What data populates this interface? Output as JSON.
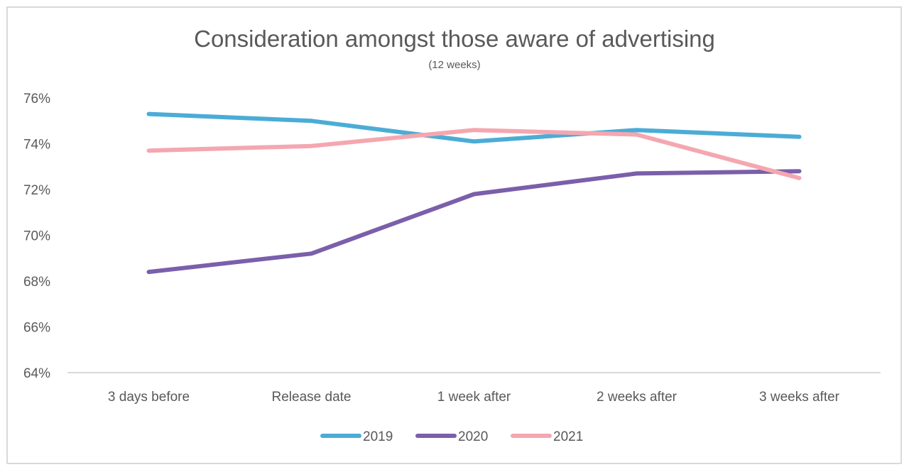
{
  "chart_data": {
    "type": "line",
    "title": "Consideration amongst those aware of advertising",
    "subtitle": "(12 weeks)",
    "xlabel": "",
    "ylabel": "",
    "categories": [
      "3 days before",
      "Release date",
      "1 week after",
      "2 weeks after",
      "3 weeks after"
    ],
    "ylim": [
      64,
      76
    ],
    "yticks": [
      64,
      66,
      68,
      70,
      72,
      74,
      76
    ],
    "ytick_format": "percent",
    "grid": false,
    "legend_position": "bottom",
    "series": [
      {
        "name": "2019",
        "color": "#4BACD6",
        "values": [
          75.3,
          75.0,
          74.1,
          74.6,
          74.3
        ]
      },
      {
        "name": "2020",
        "color": "#7B5FAA",
        "values": [
          68.4,
          69.2,
          71.8,
          72.7,
          72.8
        ]
      },
      {
        "name": "2021",
        "color": "#F4A7B0",
        "values": [
          73.7,
          73.9,
          74.6,
          74.4,
          72.5
        ]
      }
    ]
  }
}
